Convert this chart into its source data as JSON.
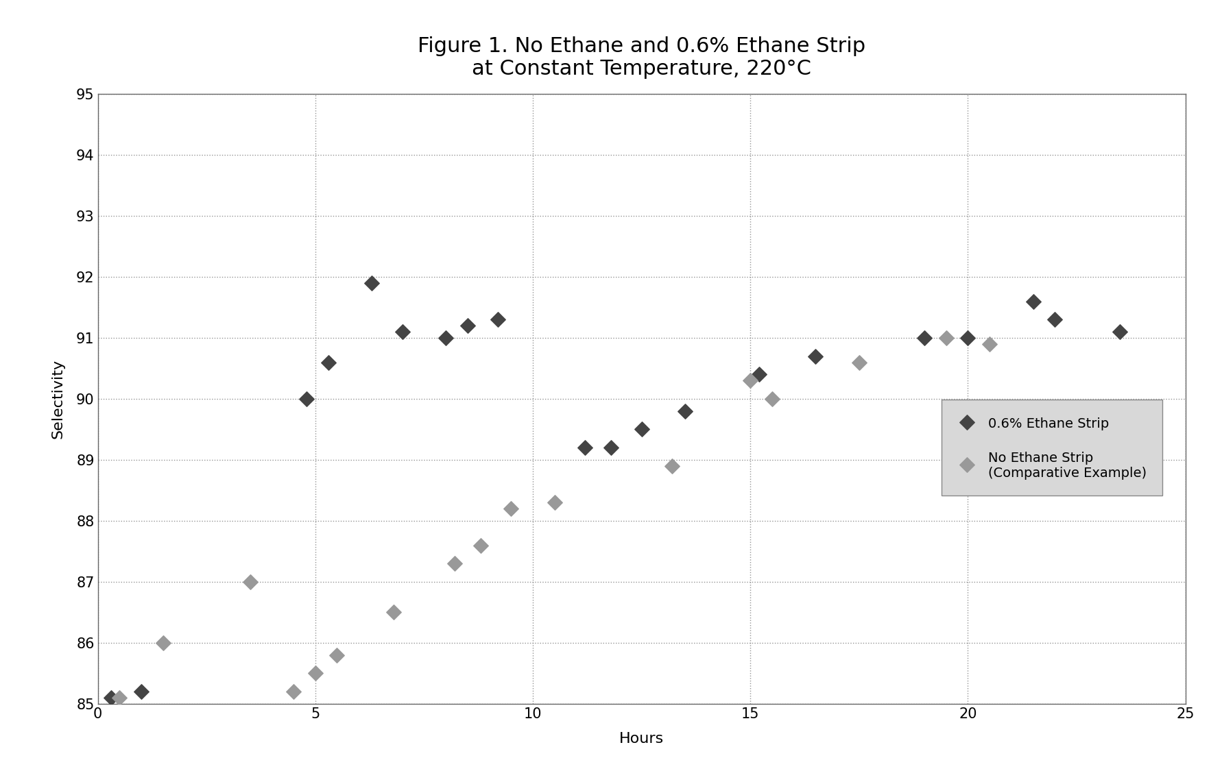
{
  "title_line1": "Figure 1. No Ethane and 0.6% Ethane Strip",
  "title_line2": "at Constant Temperature, 220°C",
  "xlabel": "Hours",
  "ylabel": "Selectivity",
  "xlim": [
    0,
    25
  ],
  "ylim": [
    85,
    95
  ],
  "yticks": [
    85,
    86,
    87,
    88,
    89,
    90,
    91,
    92,
    93,
    94,
    95
  ],
  "xticks": [
    0,
    5,
    10,
    15,
    20,
    25
  ],
  "series1_name": "0.6% Ethane Strip",
  "series1_x": [
    0.3,
    1.0,
    4.8,
    5.3,
    6.3,
    7.0,
    8.0,
    8.5,
    9.2,
    11.2,
    11.8,
    12.5,
    13.5,
    15.2,
    16.5,
    19.0,
    20.0,
    21.5,
    22.0,
    23.5
  ],
  "series1_y": [
    85.1,
    85.2,
    90.0,
    90.6,
    91.9,
    91.1,
    91.0,
    91.2,
    91.3,
    89.2,
    89.2,
    89.5,
    89.8,
    90.4,
    90.7,
    91.0,
    91.0,
    91.6,
    91.3,
    91.1
  ],
  "series2_name": "No Ethane Strip\n(Comparative Example)",
  "series2_x": [
    0.5,
    1.5,
    3.5,
    4.5,
    5.0,
    5.5,
    6.8,
    8.2,
    8.8,
    9.5,
    10.5,
    13.2,
    15.0,
    15.5,
    17.5,
    19.5,
    20.5
  ],
  "series2_y": [
    85.1,
    86.0,
    87.0,
    85.2,
    85.5,
    85.8,
    86.5,
    87.3,
    87.6,
    88.2,
    88.3,
    88.9,
    90.3,
    90.0,
    90.6,
    91.0,
    90.9
  ],
  "marker_size": 120,
  "grid_color": "#888888",
  "bg_color": "#ffffff",
  "plot_bg_color": "#ffffff",
  "series1_color": "#444444",
  "series2_color": "#999999",
  "title_fontsize": 22,
  "label_fontsize": 16,
  "tick_fontsize": 15,
  "legend_fontsize": 14,
  "legend_bg": "#d8d8d8"
}
